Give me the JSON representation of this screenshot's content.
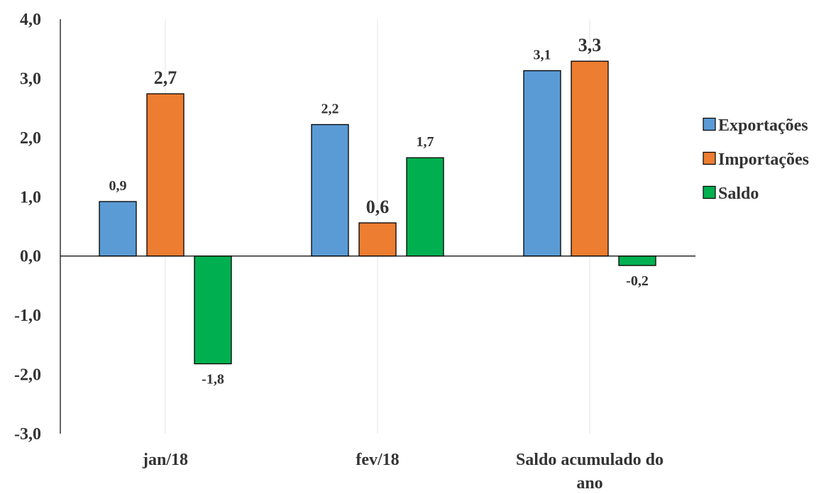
{
  "chart_data": {
    "type": "bar",
    "title": "",
    "xlabel": "",
    "ylabel": "",
    "ylim": [
      -3.0,
      4.0
    ],
    "yticks": [
      "4,0",
      "3,0",
      "2,0",
      "1,0",
      "0,0",
      "-1,0",
      "-2,0",
      "-3,0"
    ],
    "ytick_values": [
      4,
      3,
      2,
      1,
      0,
      -1,
      -2,
      -3
    ],
    "categories": [
      "jan/18",
      "fev/18",
      "Saldo acumulado do ano"
    ],
    "category_lines": [
      [
        "jan/18"
      ],
      [
        "fev/18"
      ],
      [
        "Saldo acumulado do",
        "ano"
      ]
    ],
    "series": [
      {
        "name": "Exportações",
        "color": "#5B9BD5",
        "values": [
          0.92,
          2.22,
          3.13
        ],
        "labels": [
          "0,9",
          "2,2",
          "3,1"
        ],
        "label_emphasis": [
          false,
          false,
          false
        ]
      },
      {
        "name": "Importações",
        "color": "#ED7D31",
        "values": [
          2.74,
          0.56,
          3.29
        ],
        "labels": [
          "2,7",
          "0,6",
          "3,3"
        ],
        "label_emphasis": [
          true,
          true,
          true
        ]
      },
      {
        "name": "Saldo",
        "color": "#00B050",
        "values": [
          -1.82,
          1.66,
          -0.16
        ],
        "labels": [
          "-1,8",
          "1,7",
          "-0,2"
        ],
        "label_emphasis": [
          false,
          false,
          false
        ]
      }
    ],
    "legend": {
      "position": "right"
    },
    "grid": {
      "vertical": true,
      "horizontal": false
    }
  }
}
